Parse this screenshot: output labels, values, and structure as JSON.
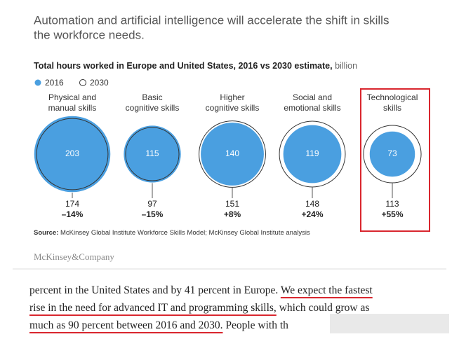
{
  "header": {
    "title_lines": [
      "Automation and artificial intelligence will accelerate the shift in skills",
      "the workforce needs."
    ]
  },
  "chart_data": {
    "type": "bubble",
    "title": "Total hours worked in Europe and United States, 2016 vs 2030 estimate,",
    "unit": "billion",
    "categories": [
      [
        "Physical and",
        "manual skills"
      ],
      [
        "Basic",
        "cognitive skills"
      ],
      [
        "Higher",
        "cognitive skills"
      ],
      [
        "Social and",
        "emotional skills"
      ],
      [
        "Technological",
        "skills"
      ]
    ],
    "series": [
      {
        "name": "2016",
        "color": "#4a9fe0",
        "values": [
          203,
          115,
          140,
          119,
          73
        ]
      },
      {
        "name": "2030",
        "color": "#333333",
        "values": [
          174,
          97,
          151,
          148,
          113
        ]
      }
    ],
    "changes": [
      -14,
      -15,
      8,
      24,
      55
    ],
    "change_labels": [
      "–14%",
      "–15%",
      "+8%",
      "+24%",
      "+55%"
    ],
    "highlight": 4,
    "highlight_color": "#d9262e",
    "source_label": "Source:",
    "source": "McKinsey Global Institute Workforce Skills Model; McKinsey Global Institute analysis"
  },
  "brand": "McKinsey&Company",
  "body": {
    "lines": [
      [
        {
          "text": "percent in the United States and by 41 percent in Europe. ",
          "underline": false
        },
        {
          "text": "We expect the fastest",
          "underline": true
        }
      ],
      [
        {
          "text": "rise in the need for advanced IT and programming skills,",
          "underline": true
        },
        {
          "text": " which could grow as",
          "underline": false
        }
      ],
      [
        {
          "text": "much as 90 percent between 2016 and 2030.",
          "underline": true
        },
        {
          "text": " People with th",
          "underline": false
        }
      ]
    ]
  }
}
